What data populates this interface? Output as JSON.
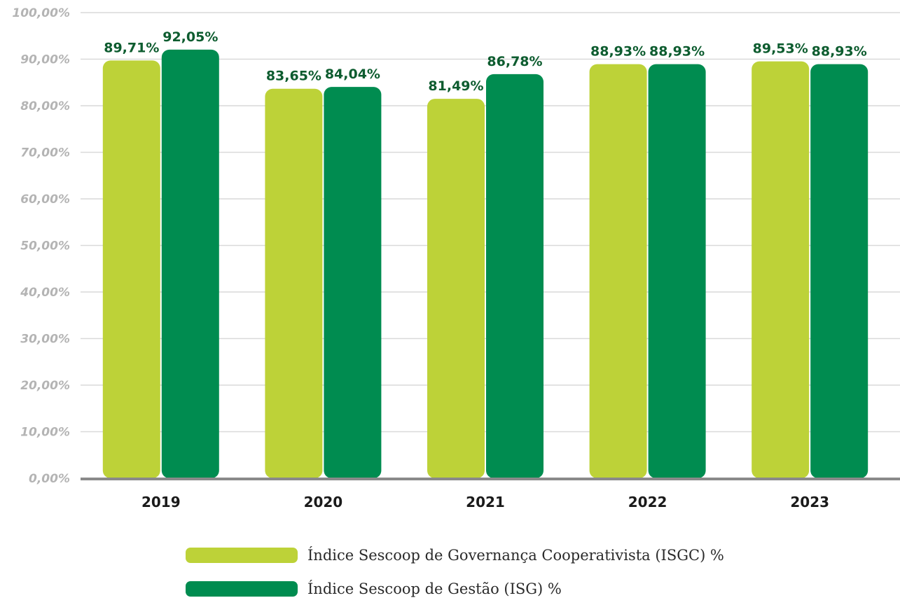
{
  "chart_data": {
    "type": "bar",
    "categories": [
      "2019",
      "2020",
      "2021",
      "2022",
      "2023"
    ],
    "series": [
      {
        "name": "Índice Sescoop de Governança Cooperativista (ISGC) %",
        "values": [
          89.71,
          83.65,
          81.49,
          88.93,
          89.53
        ],
        "labels": [
          "89,71%",
          "83,65%",
          "81,49%",
          "88,93%",
          "89,53%"
        ],
        "color": "#bdd238"
      },
      {
        "name": "Índice Sescoop de Gestão (ISG) %",
        "values": [
          92.05,
          84.04,
          86.78,
          88.93,
          88.93
        ],
        "labels": [
          "92,05%",
          "84,04%",
          "86,78%",
          "88,93%",
          "88,93%"
        ],
        "color": "#008c50"
      }
    ],
    "ylim": [
      0,
      100
    ],
    "yticks": [
      "0,00%",
      "10,00%",
      "20,00%",
      "30,00%",
      "40,00%",
      "50,00%",
      "60,00%",
      "70,00%",
      "80,00%",
      "90,00%",
      "100,00%"
    ],
    "grid": true,
    "legend": "bottom"
  },
  "legend": {
    "isgc_label": "Índice Sescoop de Governança Cooperativista (ISGC) %",
    "isg_label": "Índice Sescoop de Gestão (ISG) %",
    "isgc_color": "#bdd238",
    "isg_color": "#008c50"
  }
}
